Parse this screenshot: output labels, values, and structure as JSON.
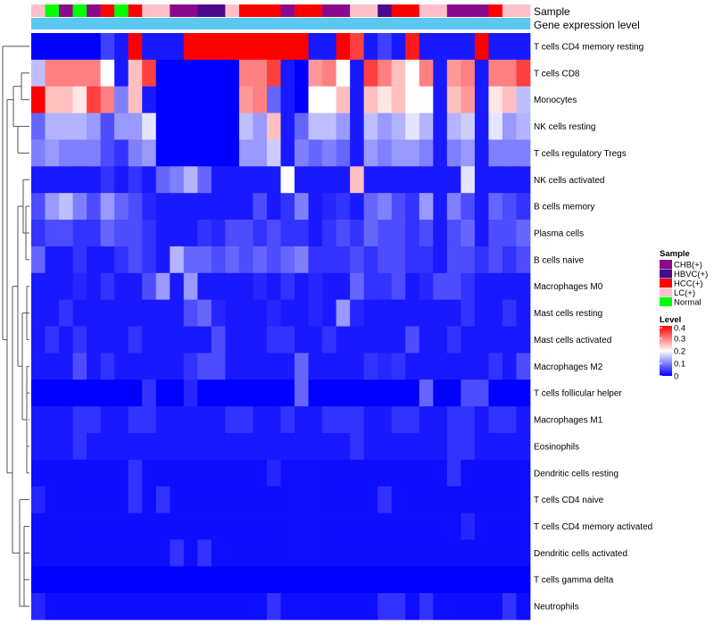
{
  "chart_data": {
    "type": "heatmap",
    "title": "",
    "annotation_labels": [
      "Sample",
      "Gene expression level"
    ],
    "rows": [
      "T cells CD4 memory resting",
      "T cells CD8",
      "Monocytes",
      "NK cells resting",
      "T cells regulatory  Tregs",
      "NK cells activated",
      "B cells memory",
      "Plasma cells",
      "B cells naive",
      "Macrophages M0",
      "Mast cells resting",
      "Mast cells activated",
      "Macrophages M2",
      "T cells follicular helper",
      "Macrophages M1",
      "Eosinophils",
      "Dendritic cells resting",
      "T cells CD4 naive",
      "T cells CD4 memory activated",
      "Dendritic cells activated",
      "T cells gamma delta",
      "Neutrophils"
    ],
    "sample_groups": [
      "LC(+)",
      "Normal",
      "CHB(+)",
      "Normal",
      "CHB(+)",
      "HCC(+)",
      "Normal",
      "HCC(+)",
      "LC(+)",
      "LC(+)",
      "CHB(+)",
      "CHB(+)",
      "HBVC(+)",
      "HBVC(+)",
      "LC(+)",
      "HCC(+)",
      "HCC(+)",
      "HCC(+)",
      "CHB(+)",
      "HCC(+)",
      "HCC(+)",
      "CHB(+)",
      "CHB(+)",
      "LC(+)",
      "LC(+)",
      "HBVC(+)",
      "HCC(+)",
      "HCC(+)",
      "LC(+)",
      "LC(+)",
      "CHB(+)",
      "CHB(+)",
      "CHB(+)",
      "HCC(+)",
      "LC(+)",
      "LC(+)"
    ],
    "gene_expression_level": [
      0.12,
      0.12,
      0.12,
      0.12,
      0.12,
      0.12,
      0.12,
      0.12,
      0.12,
      0.12,
      0.12,
      0.12,
      0.12,
      0.12,
      0.12,
      0.12,
      0.12,
      0.12,
      0.12,
      0.12,
      0.12,
      0.12,
      0.12,
      0.12,
      0.12,
      0.12,
      0.12,
      0.12,
      0.12,
      0.12,
      0.12,
      0.12,
      0.12,
      0.12,
      0.12,
      0.12
    ],
    "values": [
      [
        0,
        0,
        0,
        0,
        0,
        0.05,
        0.02,
        0.4,
        0.02,
        0.02,
        0.02,
        0.4,
        0.4,
        0.4,
        0.4,
        0.4,
        0.4,
        0.4,
        0.4,
        0.4,
        0.02,
        0.02,
        0.4,
        0.35,
        0.02,
        0.05,
        0.02,
        0.38,
        0.02,
        0.02,
        0.02,
        0.02,
        0.4,
        0.02,
        0.02,
        0.02
      ],
      [
        0.15,
        0.3,
        0.3,
        0.3,
        0.3,
        0.2,
        0.02,
        0.25,
        0.35,
        0,
        0,
        0,
        0,
        0,
        0,
        0.3,
        0.3,
        0.35,
        0.02,
        0,
        0.28,
        0.3,
        0.2,
        0.02,
        0.35,
        0.3,
        0.25,
        0.2,
        0.3,
        0.02,
        0.28,
        0.3,
        0.02,
        0.3,
        0.3,
        0.35
      ],
      [
        0.4,
        0.25,
        0.25,
        0.22,
        0.35,
        0.3,
        0.1,
        0.25,
        0.02,
        0,
        0,
        0,
        0,
        0,
        0,
        0.28,
        0.3,
        0.08,
        0.02,
        0,
        0.2,
        0.2,
        0.25,
        0.02,
        0.25,
        0.22,
        0.25,
        0.2,
        0.2,
        0.02,
        0.25,
        0.28,
        0.02,
        0.22,
        0.25,
        0.15
      ],
      [
        0.08,
        0.14,
        0.14,
        0.14,
        0.12,
        0.06,
        0.12,
        0.12,
        0.18,
        0,
        0,
        0,
        0,
        0,
        0,
        0.15,
        0.12,
        0.25,
        0.02,
        0.08,
        0.15,
        0.15,
        0.12,
        0.02,
        0.15,
        0.12,
        0.14,
        0.18,
        0.14,
        0.02,
        0.14,
        0.16,
        0.02,
        0.18,
        0.12,
        0.14
      ],
      [
        0.1,
        0.12,
        0.1,
        0.1,
        0.1,
        0.06,
        0.04,
        0.1,
        0.12,
        0,
        0,
        0,
        0,
        0,
        0,
        0.12,
        0.12,
        0.16,
        0.02,
        0.1,
        0.08,
        0.1,
        0.08,
        0.02,
        0.12,
        0.1,
        0.12,
        0.12,
        0.1,
        0.02,
        0.1,
        0.12,
        0.02,
        0.1,
        0.1,
        0.1
      ],
      [
        0.02,
        0.02,
        0.02,
        0.02,
        0.02,
        0.04,
        0.02,
        0.04,
        0.02,
        0.08,
        0.1,
        0.14,
        0.08,
        0.02,
        0.02,
        0.02,
        0.02,
        0.02,
        0.2,
        0.02,
        0.02,
        0.02,
        0.02,
        0.25,
        0.02,
        0.02,
        0.02,
        0.02,
        0.02,
        0.02,
        0.02,
        0.18,
        0.02,
        0.02,
        0.02,
        0.02
      ],
      [
        0.06,
        0.12,
        0.15,
        0.1,
        0.06,
        0.12,
        0.08,
        0.06,
        0.03,
        0.02,
        0.02,
        0.02,
        0.02,
        0.02,
        0.02,
        0.02,
        0.06,
        0.02,
        0.04,
        0.1,
        0.02,
        0.03,
        0.04,
        0.02,
        0.08,
        0.1,
        0.06,
        0.04,
        0.12,
        0.02,
        0.1,
        0.06,
        0.02,
        0.08,
        0.06,
        0.04
      ],
      [
        0.04,
        0.06,
        0.06,
        0.04,
        0.04,
        0.08,
        0.06,
        0.06,
        0.04,
        0.02,
        0.02,
        0.02,
        0.04,
        0.03,
        0.06,
        0.06,
        0.04,
        0.06,
        0.04,
        0.04,
        0.02,
        0.04,
        0.06,
        0.04,
        0.08,
        0.06,
        0.06,
        0.04,
        0.06,
        0.02,
        0.06,
        0.08,
        0.02,
        0.06,
        0.06,
        0.08
      ],
      [
        0.08,
        0.02,
        0.02,
        0.04,
        0.02,
        0.02,
        0.04,
        0.06,
        0.04,
        0.02,
        0.14,
        0.08,
        0.08,
        0.06,
        0.08,
        0.06,
        0.08,
        0.06,
        0.08,
        0.1,
        0.04,
        0.04,
        0.04,
        0.06,
        0.04,
        0.06,
        0.06,
        0.04,
        0.04,
        0.02,
        0.06,
        0.06,
        0.04,
        0.06,
        0.04,
        0.06
      ],
      [
        0.02,
        0.02,
        0.02,
        0.03,
        0.02,
        0.04,
        0.02,
        0.02,
        0.06,
        0.12,
        0.02,
        0.12,
        0.02,
        0.02,
        0.02,
        0.02,
        0.03,
        0.02,
        0.04,
        0.02,
        0.03,
        0.02,
        0.02,
        0.08,
        0.04,
        0.04,
        0.06,
        0.02,
        0.03,
        0.06,
        0.06,
        0.04,
        0.02,
        0.02,
        0.02,
        0.02
      ],
      [
        0.02,
        0.02,
        0.04,
        0.02,
        0.02,
        0.02,
        0.02,
        0.02,
        0.02,
        0.02,
        0.02,
        0.06,
        0.08,
        0.03,
        0.02,
        0.02,
        0.02,
        0.03,
        0.02,
        0.02,
        0.03,
        0.02,
        0.12,
        0.03,
        0.02,
        0.02,
        0.02,
        0.02,
        0.02,
        0.02,
        0.02,
        0.04,
        0.02,
        0.02,
        0.04,
        0.02
      ],
      [
        0.02,
        0.04,
        0.02,
        0.04,
        0.02,
        0.02,
        0.02,
        0.04,
        0.02,
        0.02,
        0.02,
        0.02,
        0.02,
        0.06,
        0.02,
        0.02,
        0.02,
        0.04,
        0.04,
        0.02,
        0.02,
        0.04,
        0.02,
        0.02,
        0.02,
        0.02,
        0.02,
        0.06,
        0.02,
        0.02,
        0.04,
        0.02,
        0.02,
        0.02,
        0.02,
        0.02
      ],
      [
        0.02,
        0.02,
        0.02,
        0.06,
        0.02,
        0.04,
        0.02,
        0.02,
        0.02,
        0.02,
        0.02,
        0.04,
        0.06,
        0.06,
        0.02,
        0.02,
        0.02,
        0.02,
        0.02,
        0.08,
        0.02,
        0.02,
        0.02,
        0.02,
        0.04,
        0.03,
        0.04,
        0.02,
        0.02,
        0.02,
        0.02,
        0.02,
        0.02,
        0.04,
        0.02,
        0.06
      ],
      [
        0,
        0,
        0,
        0,
        0,
        0,
        0,
        0,
        0.04,
        0,
        0,
        0.03,
        0,
        0,
        0,
        0,
        0,
        0,
        0,
        0.08,
        0,
        0,
        0,
        0,
        0,
        0,
        0,
        0,
        0.08,
        0,
        0,
        0.06,
        0.06,
        0,
        0,
        0
      ],
      [
        0.02,
        0.02,
        0.02,
        0.04,
        0.04,
        0.02,
        0.02,
        0.04,
        0.04,
        0.02,
        0.02,
        0.02,
        0.02,
        0.02,
        0.04,
        0.04,
        0.02,
        0.02,
        0.04,
        0.02,
        0.02,
        0.04,
        0.04,
        0.04,
        0.02,
        0.02,
        0.04,
        0.04,
        0.02,
        0.02,
        0.04,
        0.04,
        0.02,
        0.04,
        0.04,
        0.02
      ],
      [
        0.02,
        0.02,
        0.02,
        0.04,
        0.02,
        0.02,
        0.02,
        0.02,
        0.02,
        0.02,
        0.02,
        0.02,
        0.02,
        0.02,
        0.02,
        0.02,
        0.02,
        0.02,
        0.02,
        0.02,
        0.02,
        0.02,
        0.02,
        0.04,
        0.02,
        0.02,
        0.02,
        0.02,
        0.02,
        0.02,
        0.04,
        0.04,
        0.02,
        0.02,
        0.02,
        0.02
      ],
      [
        0.01,
        0.01,
        0.01,
        0.01,
        0.01,
        0.01,
        0.01,
        0.04,
        0.01,
        0.01,
        0.01,
        0.01,
        0.01,
        0.01,
        0.01,
        0.01,
        0.01,
        0.03,
        0.01,
        0.01,
        0.01,
        0.01,
        0.01,
        0.01,
        0.01,
        0.01,
        0.01,
        0.01,
        0.01,
        0.01,
        0.04,
        0.01,
        0.01,
        0.01,
        0.01,
        0.01
      ],
      [
        0.03,
        0.01,
        0.01,
        0.01,
        0.01,
        0.01,
        0.01,
        0.04,
        0.01,
        0.04,
        0.01,
        0.01,
        0.01,
        0.01,
        0.01,
        0.01,
        0.01,
        0.01,
        0.01,
        0.01,
        0.01,
        0.01,
        0.01,
        0.01,
        0.01,
        0.04,
        0.01,
        0.01,
        0.01,
        0.01,
        0.01,
        0.01,
        0.01,
        0.01,
        0.01,
        0.01
      ],
      [
        0.01,
        0.01,
        0.01,
        0.01,
        0.01,
        0.01,
        0.01,
        0.01,
        0.01,
        0.01,
        0.01,
        0.01,
        0.01,
        0.01,
        0.01,
        0.01,
        0.01,
        0.01,
        0.01,
        0.01,
        0.01,
        0.01,
        0.01,
        0.01,
        0.01,
        0.01,
        0.01,
        0.01,
        0.01,
        0.01,
        0.01,
        0.03,
        0.01,
        0.01,
        0.01,
        0.01
      ],
      [
        0.01,
        0.01,
        0.01,
        0.01,
        0.01,
        0.01,
        0.01,
        0.01,
        0.01,
        0.01,
        0.04,
        0.01,
        0.04,
        0.01,
        0.01,
        0.01,
        0.01,
        0.01,
        0.01,
        0.01,
        0.01,
        0.01,
        0.01,
        0.01,
        0.01,
        0.01,
        0.01,
        0.01,
        0.01,
        0.01,
        0.01,
        0.01,
        0.01,
        0.01,
        0.01,
        0.01
      ],
      [
        0,
        0,
        0,
        0,
        0,
        0,
        0,
        0,
        0,
        0,
        0,
        0,
        0,
        0,
        0,
        0,
        0,
        0,
        0,
        0,
        0,
        0,
        0,
        0,
        0,
        0,
        0,
        0,
        0,
        0,
        0,
        0,
        0,
        0,
        0,
        0
      ],
      [
        0.03,
        0.01,
        0.01,
        0.01,
        0.01,
        0.01,
        0.01,
        0.01,
        0.01,
        0.01,
        0.01,
        0.01,
        0.01,
        0.01,
        0.01,
        0.01,
        0.01,
        0.04,
        0.01,
        0.01,
        0.01,
        0.01,
        0.01,
        0.01,
        0.01,
        0.04,
        0.04,
        0.01,
        0.04,
        0.01,
        0.01,
        0.01,
        0.01,
        0.01,
        0.04,
        0.01
      ]
    ],
    "legend_sample": {
      "title": "Sample",
      "entries": [
        {
          "label": "CHB(+)",
          "color": "#8b0a8b"
        },
        {
          "label": "HBVC(+)",
          "color": "#4b0a8b"
        },
        {
          "label": "HCC(+)",
          "color": "#ff0000"
        },
        {
          "label": "LC(+)",
          "color": "#ffc0cb"
        },
        {
          "label": "Normal",
          "color": "#00ff00"
        }
      ]
    },
    "legend_level": {
      "title": "Level",
      "ticks": [
        0.4,
        0.3,
        0.2,
        0.1,
        0
      ],
      "min": 0,
      "max": 0.4
    },
    "colors": {
      "low": "#0000ff",
      "mid": "#ffffff",
      "high": "#ff0000",
      "gene_level_bar": "#5bc8f0"
    }
  }
}
